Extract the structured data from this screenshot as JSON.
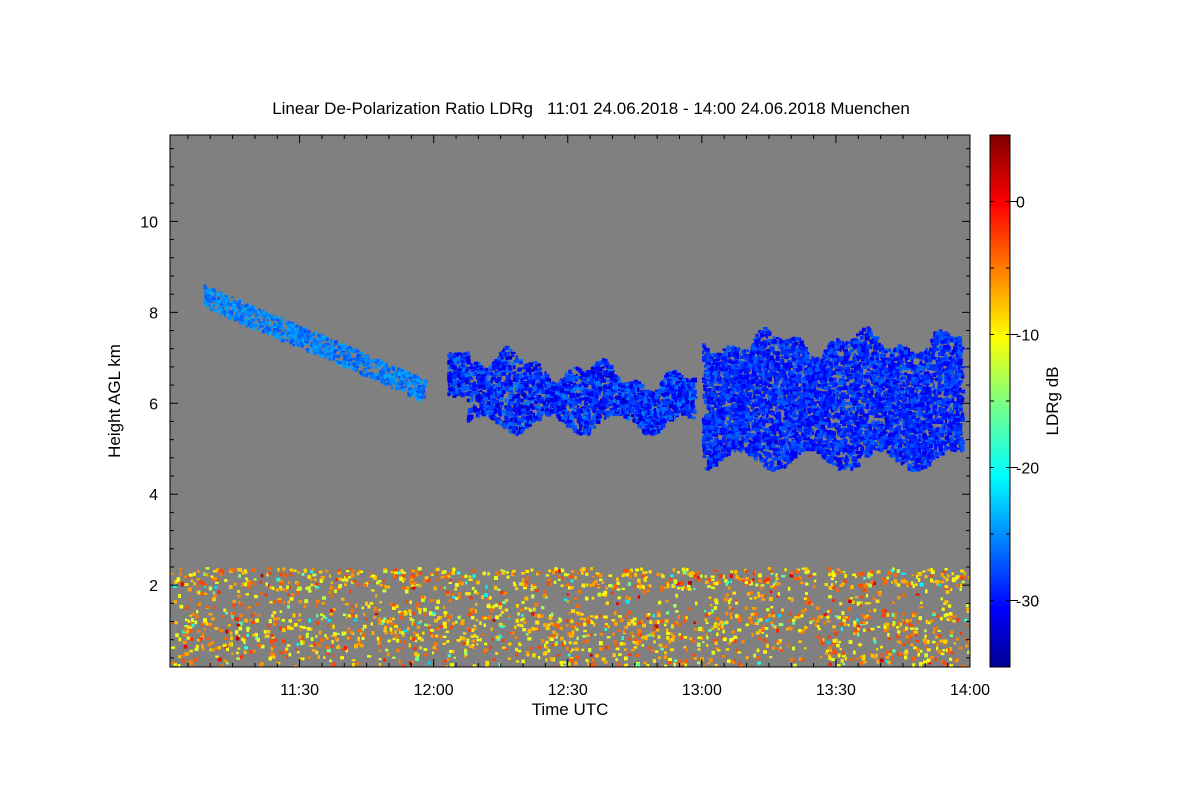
{
  "chart_data": {
    "type": "heatmap",
    "title": "Linear De-Polarization Ratio LDRg   11:01 24.06.2018 - 14:00 24.06.2018 Muenchen",
    "xlabel": "Time UTC",
    "ylabel": "Height AGL km",
    "xlim": [
      "11:01",
      "14:00"
    ],
    "x_ticks": [
      "11:30",
      "12:00",
      "12:30",
      "13:00",
      "13:30",
      "14:00"
    ],
    "ylim": [
      0.2,
      11.9
    ],
    "y_ticks": [
      2,
      4,
      6,
      8,
      10
    ],
    "colorbar": {
      "label": "LDRg dB",
      "range": [
        -35,
        5
      ],
      "ticks": [
        0,
        -10,
        -20,
        -30
      ],
      "colormap": "jet"
    },
    "background_color": "#808080",
    "features": [
      {
        "kind": "boundary-layer",
        "start": "11:01",
        "end": "14:00",
        "base_km": 0.2,
        "top_km": 2.4,
        "ldr_db_range": [
          -12,
          -2
        ]
      },
      {
        "kind": "cirrus",
        "start": "11:08",
        "end": "11:58",
        "top_km": 8.4,
        "base_km": 6.3,
        "ldr_db": -25
      },
      {
        "kind": "cloud",
        "start": "12:03",
        "end": "12:58",
        "top_km": 7.1,
        "base_km": 5.4,
        "ldr_db_range": [
          -32,
          -25
        ]
      },
      {
        "kind": "cloud",
        "start": "13:00",
        "end": "13:58",
        "top_km": 7.6,
        "base_km": 4.6,
        "ldr_db_range": [
          -31,
          -26
        ]
      }
    ]
  }
}
